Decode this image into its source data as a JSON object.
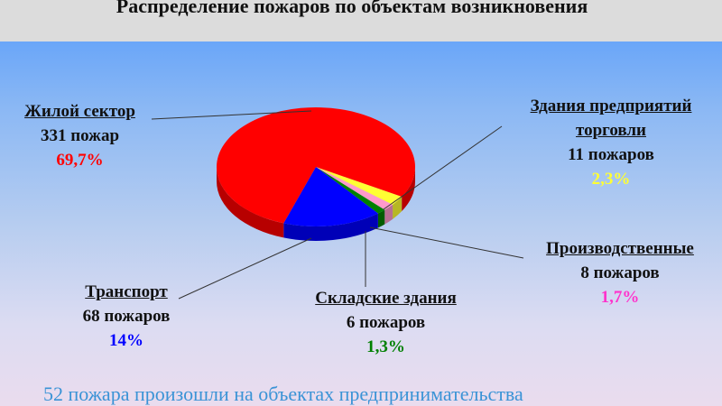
{
  "chart_data": {
    "type": "pie",
    "title": "Распределение пожаров по объектам возникновения",
    "three_d": true,
    "slices": [
      {
        "name": "Здания предприятий торговли",
        "count_label": "11 пожаров",
        "value": 11,
        "percent_label": "2,3%",
        "color": "#ffff33",
        "label_color": "#ffff33"
      },
      {
        "name": "Производственные",
        "count_label": "8 пожаров",
        "value": 8,
        "percent_label": "1,7%",
        "color": "#ff99cc",
        "label_color": "#ff33cc"
      },
      {
        "name": "Складские здания",
        "count_label": "6 пожаров",
        "value": 6,
        "percent_label": "1,3%",
        "color": "#008000",
        "label_color": "#008000"
      },
      {
        "name": "Транспорт",
        "count_label": "68 пожаров",
        "value": 68,
        "percent_label": "14%",
        "color": "#0000ff",
        "label_color": "#0000ff"
      },
      {
        "name": "Жилой сектор",
        "count_label": "331 пожар",
        "value": 331,
        "percent_label": "69,7%",
        "color": "#ff0000",
        "label_color": "#ff0000"
      }
    ]
  },
  "footer_note": "52 пожара произошли на объектах предпринимательства"
}
